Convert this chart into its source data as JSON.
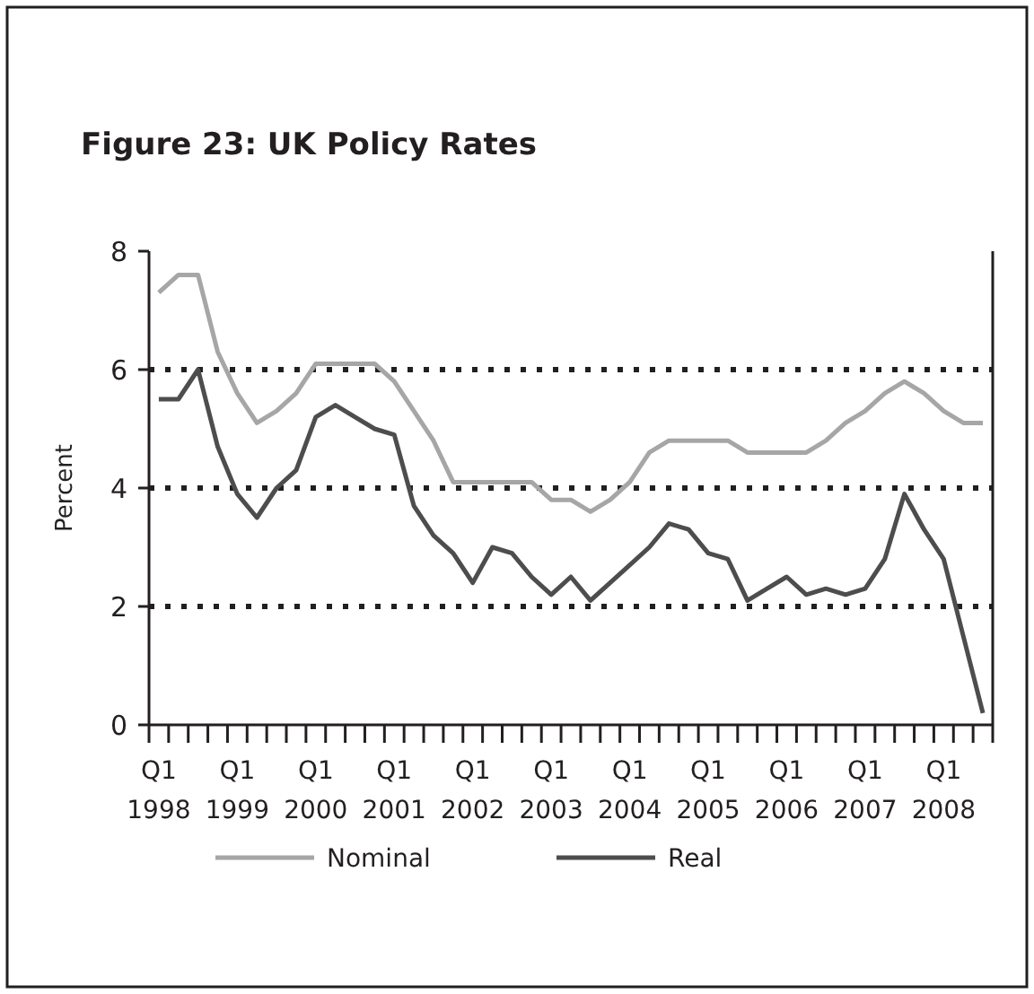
{
  "chart_data": {
    "type": "line",
    "title": "Figure 23: UK Policy Rates",
    "ylabel": "Percent",
    "categories": [
      "Q1 1998",
      null,
      null,
      null,
      "Q1 1999",
      null,
      null,
      null,
      "Q1 2000",
      null,
      null,
      null,
      "Q1 2001",
      null,
      null,
      null,
      "Q1 2002",
      null,
      null,
      null,
      "Q1 2003",
      null,
      null,
      null,
      "Q1 2004",
      null,
      null,
      null,
      "Q1 2005",
      null,
      null,
      null,
      "Q1 2006",
      null,
      null,
      null,
      "Q1 2007",
      null,
      null,
      null,
      "Q1 2008",
      null,
      null
    ],
    "series": [
      {
        "name": "Nominal",
        "color": "#a6a6a6",
        "values": [
          7.3,
          7.6,
          7.6,
          6.3,
          5.6,
          5.1,
          5.3,
          5.6,
          6.1,
          6.1,
          6.1,
          6.1,
          5.8,
          5.3,
          4.8,
          4.1,
          4.1,
          4.1,
          4.1,
          4.1,
          3.8,
          3.8,
          3.6,
          3.8,
          4.1,
          4.6,
          4.8,
          4.8,
          4.8,
          4.8,
          4.6,
          4.6,
          4.6,
          4.6,
          4.8,
          5.1,
          5.3,
          5.6,
          5.8,
          5.6,
          5.3,
          5.1,
          5.1
        ]
      },
      {
        "name": "Real",
        "color": "#4d4d4d",
        "values": [
          5.5,
          5.5,
          6.0,
          4.7,
          3.9,
          3.5,
          4.0,
          4.3,
          5.2,
          5.4,
          5.2,
          5.0,
          4.9,
          3.7,
          3.2,
          2.9,
          2.4,
          3.0,
          2.9,
          2.5,
          2.2,
          2.5,
          2.1,
          2.4,
          2.7,
          3.0,
          3.4,
          3.3,
          2.9,
          2.8,
          2.1,
          2.3,
          2.5,
          2.2,
          2.3,
          2.2,
          2.3,
          2.8,
          3.9,
          3.3,
          2.8,
          1.5,
          0.2
        ]
      }
    ],
    "ylim": [
      0,
      8
    ],
    "yticks": [
      0,
      2,
      4,
      6,
      8
    ],
    "grid": "y",
    "legend": "bottom",
    "marker": "none",
    "line_style": "solid"
  }
}
